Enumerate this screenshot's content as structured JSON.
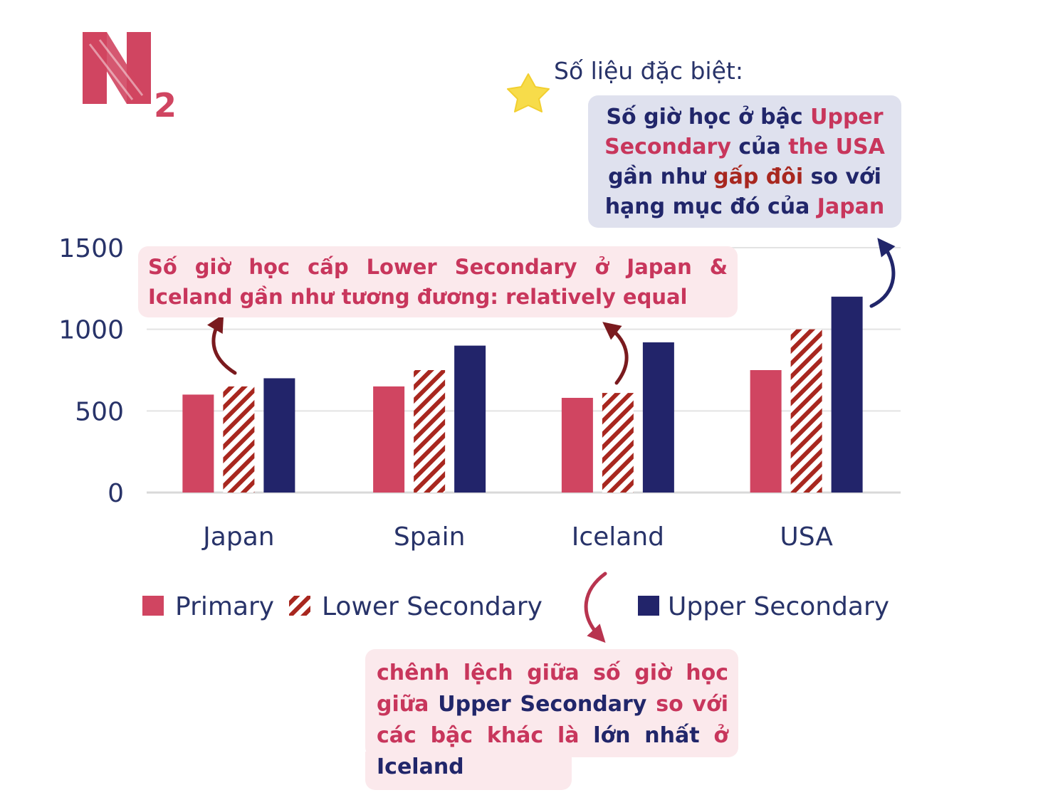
{
  "brand": {
    "logo_letter": "N",
    "logo_subscript": "2",
    "logo_color": "#c8365c"
  },
  "special_label": "Số liệu đặc biệt:",
  "notes": {
    "usa": {
      "parts": [
        {
          "text": "Số giờ học ở bậc ",
          "style": "navy"
        },
        {
          "text": "Upper Secondary",
          "style": "pink"
        },
        {
          "text": " của ",
          "style": "navy"
        },
        {
          "text": "the USA",
          "style": "pink"
        },
        {
          "text": " gần như ",
          "style": "navy"
        },
        {
          "text": "gấp đôi",
          "style": "red"
        },
        {
          "text": " so với hạng mục đó của ",
          "style": "navy"
        },
        {
          "text": "Japan",
          "style": "pink"
        }
      ]
    },
    "lower": {
      "text": "Số giờ học cấp Lower Secondary ở Japan & Iceland gần như tương đương: relatively equal"
    },
    "iceland": {
      "parts": [
        {
          "text": "chênh lệch giữa số giờ học giữa ",
          "style": "pink"
        },
        {
          "text": " Upper Secondary",
          "style": "navy"
        },
        {
          "text": " so với các bậc khác là ",
          "style": "pink"
        },
        {
          "text": "lớn nhất",
          "style": "navy"
        },
        {
          "text": " ở ",
          "style": "pink"
        },
        {
          "text": "Iceland",
          "style": "navy"
        }
      ]
    }
  },
  "colors": {
    "primary": "#d04561",
    "lower_stripe": "#a8271f",
    "upper": "#22246a",
    "axis_text": "#283369",
    "grid": "#e3e3e3"
  },
  "chart_data": {
    "type": "bar",
    "title": "",
    "xlabel": "",
    "ylabel": "",
    "categories": [
      "Japan",
      "Spain",
      "Iceland",
      "USA"
    ],
    "series": [
      {
        "name": "Primary",
        "values": [
          600,
          650,
          580,
          750
        ]
      },
      {
        "name": "Lower Secondary",
        "values": [
          650,
          750,
          610,
          1000
        ]
      },
      {
        "name": "Upper Secondary",
        "values": [
          700,
          900,
          920,
          1200
        ]
      }
    ],
    "yticks": [
      0,
      500,
      1000,
      1500
    ],
    "ylim": [
      0,
      1500
    ],
    "grid": true,
    "legend": "bottom"
  }
}
